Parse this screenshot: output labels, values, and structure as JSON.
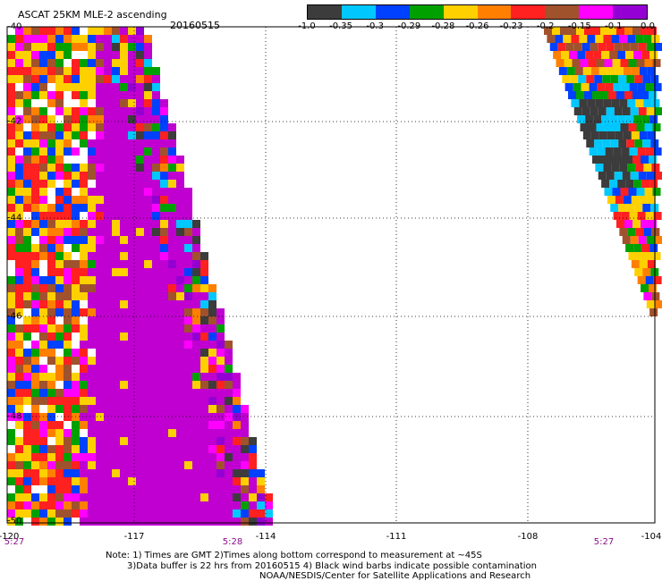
{
  "title": "ASCAT 25KM MLE-2 ascending",
  "date": "20160515",
  "colorbar": {
    "colors": [
      "#3c3c3c",
      "#00c8ff",
      "#0040ff",
      "#00a000",
      "#ffd000",
      "#ff8000",
      "#ff2020",
      "#a0522d",
      "#ff00ff",
      "#9400d3"
    ],
    "labels": [
      "-1.0",
      "-0.35",
      "-0.3",
      "-0.29",
      "-0.28",
      "-0.26",
      "-0.23",
      "-0.2",
      "-0.15",
      "-0.1",
      "0.0"
    ]
  },
  "lat_labels": [
    "-40",
    "-42",
    "-44",
    "-46",
    "-48",
    "-50"
  ],
  "lon_labels": [
    "-120",
    "-117",
    "-114",
    "-111",
    "-108",
    "-104"
  ],
  "time_labels": [
    "5:27",
    "5:28",
    "5:27"
  ],
  "notes": {
    "line1": "Note: 1) Times are GMT 2)Times along bottom correspond to measurement at ~45S",
    "line2": "3)Data buffer is 22 hrs from 20160515 4) Black wind barbs indicate possible contamination",
    "line3": "NOAA/NESDIS/Center for Satellite Applications and Research"
  }
}
